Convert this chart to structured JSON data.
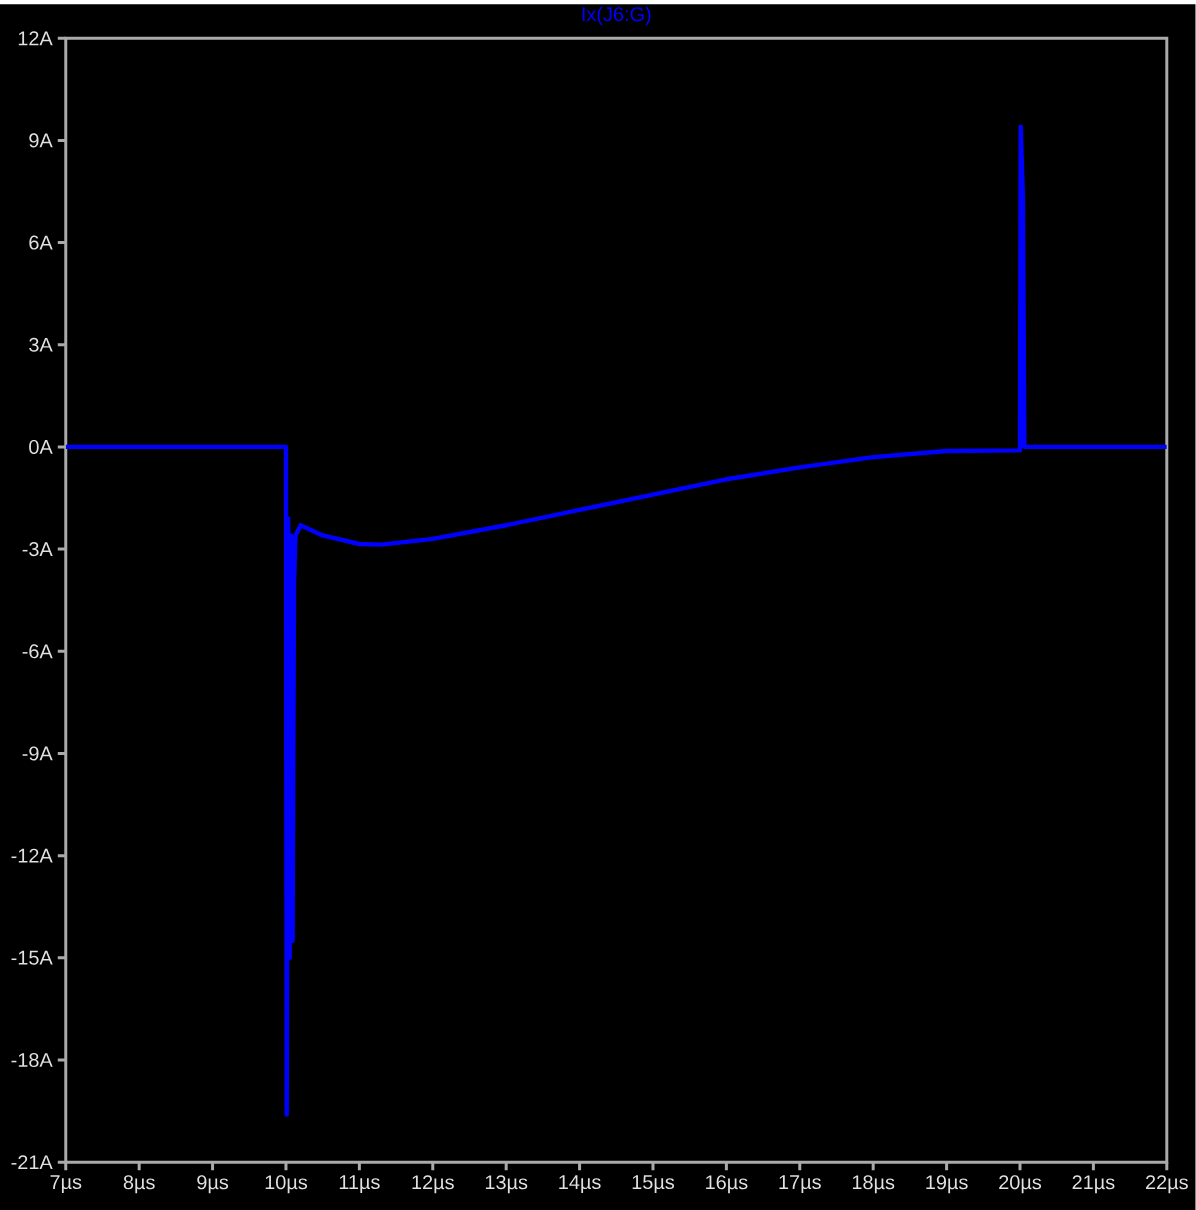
{
  "chart_data": {
    "type": "line",
    "title": "Ix(J6:G)",
    "x": [
      7,
      10.0,
      10.01,
      10.03,
      10.05,
      10.07,
      10.09,
      10.11,
      10.13,
      10.2,
      10.5,
      11.0,
      11.3,
      12.0,
      13.0,
      14.0,
      15.0,
      16.0,
      17.0,
      18.0,
      19.0,
      20.0,
      20.01,
      20.04,
      20.06,
      22
    ],
    "series": [
      {
        "color": "#0000ff",
        "values": [
          0,
          0,
          -19.6,
          -2.1,
          -15.0,
          -2.6,
          -14.5,
          -4.0,
          -2.6,
          -2.3,
          -2.6,
          -2.85,
          -2.87,
          -2.7,
          -2.3,
          -1.85,
          -1.4,
          -0.95,
          -0.6,
          -0.3,
          -0.12,
          -0.1,
          9.4,
          7.3,
          0.0,
          0
        ]
      }
    ],
    "xlim": [
      7,
      22
    ],
    "ylim": [
      -21,
      12
    ],
    "xticks": [
      {
        "value": 7,
        "label": "7µs"
      },
      {
        "value": 8,
        "label": "8µs"
      },
      {
        "value": 9,
        "label": "9µs"
      },
      {
        "value": 10,
        "label": "10µs"
      },
      {
        "value": 11,
        "label": "11µs"
      },
      {
        "value": 12,
        "label": "12µs"
      },
      {
        "value": 13,
        "label": "13µs"
      },
      {
        "value": 14,
        "label": "14µs"
      },
      {
        "value": 15,
        "label": "15µs"
      },
      {
        "value": 16,
        "label": "16µs"
      },
      {
        "value": 17,
        "label": "17µs"
      },
      {
        "value": 18,
        "label": "18µs"
      },
      {
        "value": 19,
        "label": "19µs"
      },
      {
        "value": 20,
        "label": "20µs"
      },
      {
        "value": 21,
        "label": "21µs"
      },
      {
        "value": 22,
        "label": "22µs"
      }
    ],
    "yticks": [
      {
        "value": -21,
        "label": "-21A"
      },
      {
        "value": -18,
        "label": "-18A"
      },
      {
        "value": -15,
        "label": "-15A"
      },
      {
        "value": -12,
        "label": "-12A"
      },
      {
        "value": -9,
        "label": "-9A"
      },
      {
        "value": -6,
        "label": "-6A"
      },
      {
        "value": -3,
        "label": "-3A"
      },
      {
        "value": 0,
        "label": "0A"
      },
      {
        "value": 3,
        "label": "3A"
      },
      {
        "value": 6,
        "label": "6A"
      },
      {
        "value": 9,
        "label": "9A"
      },
      {
        "value": 12,
        "label": "12A"
      }
    ],
    "grid": false,
    "marker": "none",
    "line_style": "solid"
  }
}
